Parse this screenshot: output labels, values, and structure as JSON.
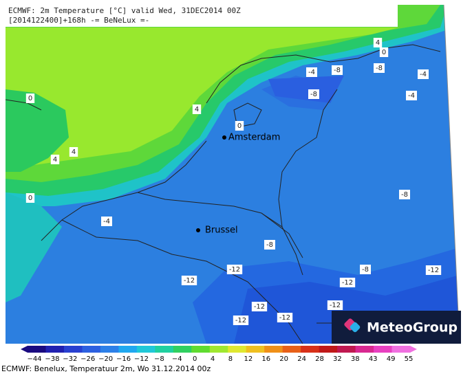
{
  "header": {
    "line1": "ECMWF: 2m Temperature [°C] valid Wed, 31DEC2014 00Z",
    "line2": "[2014122400]+168h -= BeNeLux =-"
  },
  "cities": [
    "Amsterdam",
    "Brussel"
  ],
  "contour_labels": [
    "4",
    "0",
    "-4",
    "-8",
    "-8",
    "-4",
    "-8",
    "-4",
    "0",
    "4",
    "0",
    "4",
    "4",
    "0",
    "-8",
    "-4",
    "-8",
    "-12",
    "-8",
    "-12",
    "-12",
    "-12",
    "-12",
    "-12",
    "-12",
    "-12"
  ],
  "colorbar": {
    "labels": [
      "−44",
      "−38",
      "−32",
      "−26",
      "−20",
      "−16",
      "−12",
      "−8",
      "−4",
      "0",
      "4",
      "8",
      "12",
      "16",
      "20",
      "24",
      "28",
      "32",
      "38",
      "43",
      "49",
      "55"
    ]
  },
  "logo": "MeteoGroup",
  "footer": "ECMWF: Benelux, Temperatuur 2m, Wo 31.12.2014 00z"
}
